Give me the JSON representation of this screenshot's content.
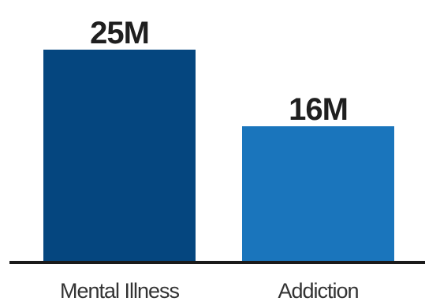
{
  "chart_data": {
    "type": "bar",
    "categories": [
      "Mental Illness",
      "Addiction"
    ],
    "values": [
      25,
      16
    ],
    "value_labels": [
      "25M",
      "16M"
    ],
    "unit": "M",
    "ylim": [
      0,
      25
    ],
    "grid": false,
    "legend": "none",
    "colors": {
      "bars": [
        "#05467f",
        "#1a75bc"
      ],
      "label_text": "#1f1f1f",
      "category_text": "#333333",
      "baseline": "#1a1a1a"
    }
  }
}
